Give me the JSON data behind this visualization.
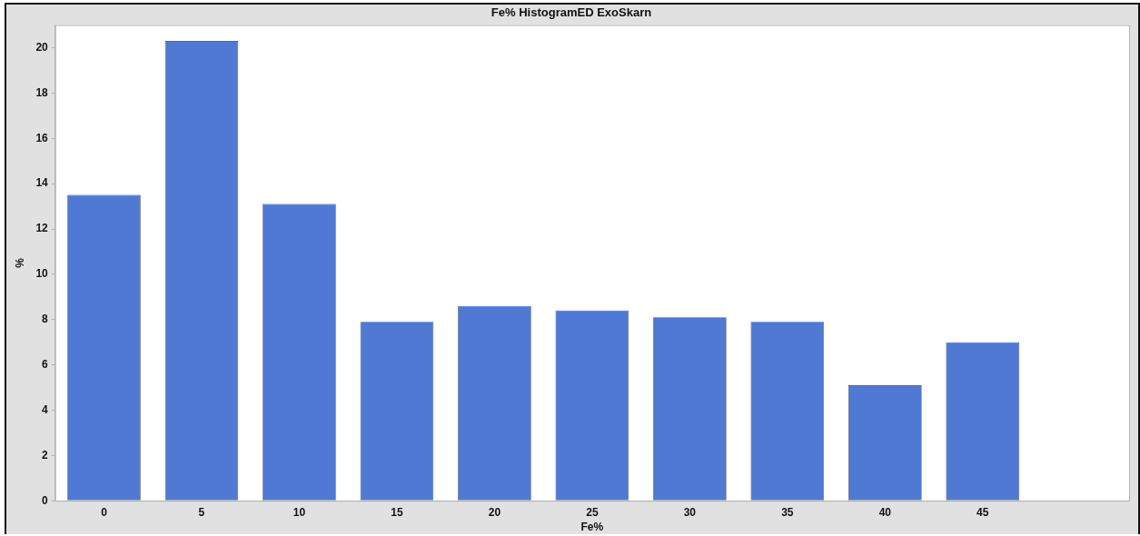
{
  "chart_data": {
    "type": "bar",
    "title": "Fe% HistogramED ExoSkarn",
    "xlabel": "Fe%",
    "ylabel": "%",
    "categories": [
      "0",
      "5",
      "10",
      "15",
      "20",
      "25",
      "30",
      "35",
      "40",
      "45",
      null
    ],
    "values": [
      13.5,
      20.3,
      13.1,
      7.9,
      8.6,
      8.4,
      8.1,
      7.9,
      5.1,
      7.0,
      null
    ],
    "color": "#5079d3",
    "ylim": [
      0,
      21
    ],
    "yticks": [
      0,
      2,
      4,
      6,
      8,
      10,
      12,
      14,
      16,
      18,
      20
    ],
    "grid": false,
    "legend": false
  }
}
